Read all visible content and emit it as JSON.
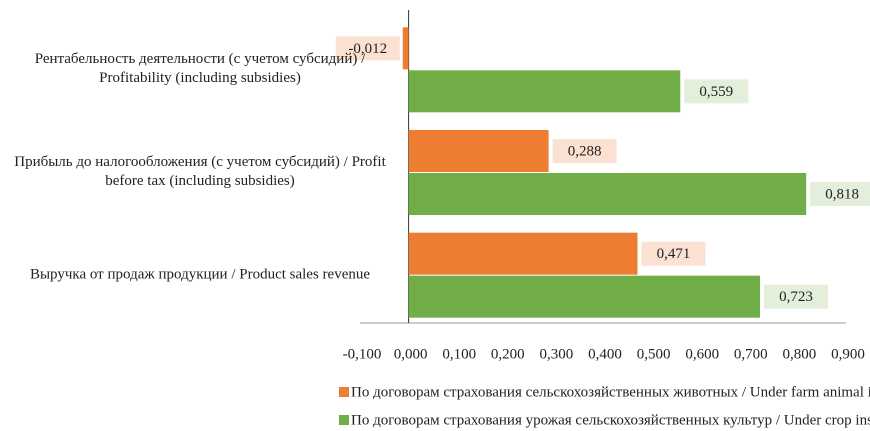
{
  "chart_data": {
    "type": "hbar",
    "categories": [
      "Рентабельность деятельности (с учетом субсидий) / Profitability (including subsidies)",
      "Прибыль до налогообложения (с учетом субсидий) / Profit before tax (including subsidies)",
      "Выручка от продаж продукции / Product sales revenue"
    ],
    "series": [
      {
        "name": "По договорам страхования сельскохозяйственных животных / Under farm animal insurance contracts",
        "color": "#ed7d31",
        "label_bg": "#fbe1d2",
        "values": [
          -0.012,
          0.288,
          0.471
        ],
        "value_labels": [
          "-0,012",
          "0,288",
          "0,471"
        ]
      },
      {
        "name": "По договорам страхования урожая сельскохозяйственных культур / Under crop insurance contracts",
        "color": "#70ad47",
        "label_bg": "#e3efda",
        "values": [
          0.559,
          0.818,
          0.723
        ],
        "value_labels": [
          "0,559",
          "0,818",
          "0,723"
        ]
      }
    ],
    "xlim": [
      -0.1,
      0.9
    ],
    "xticks": [
      {
        "value": -0.1,
        "label": "-0,100"
      },
      {
        "value": 0,
        "label": "0,000"
      },
      {
        "value": 0.1,
        "label": "0,100"
      },
      {
        "value": 0.2,
        "label": "0,200"
      },
      {
        "value": 0.3,
        "label": "0,300"
      },
      {
        "value": 0.4,
        "label": "0,400"
      },
      {
        "value": 0.5,
        "label": "0,500"
      },
      {
        "value": 0.6,
        "label": "0,600"
      },
      {
        "value": 0.7,
        "label": "0,700"
      },
      {
        "value": 0.8,
        "label": "0,800"
      },
      {
        "value": 0.9,
        "label": "0,900"
      }
    ],
    "legend": "bottom"
  }
}
